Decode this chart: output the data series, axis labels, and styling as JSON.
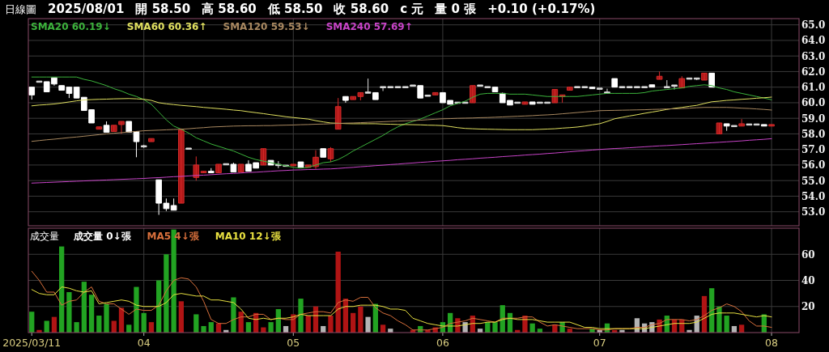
{
  "chart_data": [
    {
      "type": "candlestick",
      "title": "日線圖",
      "annotations": [
        "2025/08/01",
        "開 58.50",
        "高 58.60",
        "低 58.50",
        "收 58.60",
        "c 元",
        "量 0 張",
        "+0.10 (+0.17%)"
      ],
      "categories": [
        "2025/03/11",
        null,
        null,
        null,
        null,
        null,
        null,
        null,
        null,
        null,
        null,
        null,
        null,
        null,
        null,
        "04",
        null,
        null,
        null,
        null,
        null,
        null,
        null,
        null,
        null,
        null,
        null,
        null,
        null,
        null,
        null,
        null,
        null,
        null,
        null,
        "05",
        null,
        null,
        null,
        null,
        null,
        null,
        null,
        null,
        null,
        null,
        null,
        null,
        null,
        null,
        null,
        null,
        null,
        null,
        null,
        "06",
        null,
        null,
        null,
        null,
        null,
        null,
        null,
        null,
        null,
        null,
        null,
        null,
        null,
        null,
        null,
        null,
        null,
        null,
        null,
        null,
        "07",
        null,
        null,
        null,
        null,
        null,
        null,
        null,
        null,
        null,
        null,
        null,
        null,
        null,
        null,
        null,
        null,
        null,
        null,
        null,
        null,
        null,
        null,
        "08"
      ],
      "ohlc": [
        [
          61.0,
          61.0,
          60.2,
          60.5
        ],
        [
          61.35,
          61.35,
          61.35,
          61.35
        ],
        [
          61.35,
          61.35,
          60.7,
          60.7
        ],
        [
          61.6,
          61.6,
          61.1,
          61.2
        ],
        [
          61.1,
          61.1,
          60.8,
          60.8
        ],
        [
          61.0,
          61.0,
          60.3,
          60.6
        ],
        [
          61.0,
          61.0,
          60.3,
          60.3
        ],
        [
          60.35,
          60.35,
          59.5,
          59.5
        ],
        [
          59.55,
          59.55,
          58.7,
          58.7
        ],
        [
          58.3,
          58.45,
          58.3,
          58.45
        ],
        [
          58.55,
          58.8,
          58.1,
          58.1
        ],
        [
          58.15,
          58.55,
          58.15,
          58.55
        ],
        [
          58.6,
          58.8,
          58.0,
          58.8
        ],
        [
          58.8,
          58.8,
          58.1,
          58.1
        ],
        [
          58.15,
          58.15,
          56.5,
          57.5
        ],
        [
          57.2,
          57.3,
          57.1,
          57.2
        ],
        [
          57.5,
          57.7,
          57.5,
          57.7
        ],
        [
          55.05,
          55.05,
          52.8,
          53.55
        ],
        [
          53.55,
          53.85,
          53.05,
          53.2
        ],
        [
          53.4,
          53.85,
          53.1,
          53.1
        ],
        [
          53.55,
          58.35,
          53.55,
          58.25
        ],
        [
          57.05,
          57.05,
          57.05,
          57.05
        ],
        [
          55.2,
          56.55,
          55.0,
          56.0
        ],
        [
          55.5,
          55.6,
          55.5,
          55.6
        ],
        [
          55.6,
          55.8,
          55.5,
          55.5
        ],
        [
          55.5,
          56.05,
          55.5,
          56.05
        ],
        [
          56.05,
          56.05,
          56.05,
          56.05
        ],
        [
          56.05,
          56.15,
          55.55,
          55.55
        ],
        [
          55.55,
          56.05,
          55.55,
          56.05
        ],
        [
          56.05,
          56.3,
          55.6,
          55.6
        ],
        [
          56.15,
          56.15,
          55.8,
          55.8
        ],
        [
          56.0,
          57.05,
          56.0,
          57.05
        ],
        [
          56.3,
          56.3,
          56.0,
          56.0
        ],
        [
          56.0,
          56.25,
          55.8,
          56.0
        ],
        [
          55.95,
          55.95,
          55.95,
          55.95
        ],
        [
          55.95,
          56.05,
          55.95,
          56.05
        ],
        [
          56.2,
          56.2,
          55.85,
          55.85
        ],
        [
          55.85,
          56.0,
          55.85,
          56.0
        ],
        [
          55.9,
          56.95,
          55.75,
          56.5
        ],
        [
          57.05,
          57.05,
          56.5,
          56.5
        ],
        [
          56.4,
          57.15,
          56.2,
          57.05
        ],
        [
          58.3,
          60.3,
          58.3,
          59.75
        ],
        [
          60.4,
          60.4,
          60.0,
          60.15
        ],
        [
          60.2,
          60.4,
          60.2,
          60.4
        ],
        [
          60.4,
          60.65,
          60.15,
          60.65
        ],
        [
          60.65,
          61.55,
          60.65,
          60.65
        ],
        [
          60.65,
          60.65,
          60.2,
          60.2
        ],
        [
          61.0,
          61.0,
          60.75,
          61.0
        ],
        [
          61.0,
          61.0,
          61.0,
          61.0
        ],
        [
          61.0,
          61.0,
          61.0,
          61.0
        ],
        [
          61.0,
          61.0,
          61.0,
          61.0
        ],
        [
          61.1,
          61.1,
          61.1,
          61.1
        ],
        [
          61.1,
          61.1,
          60.3,
          60.3
        ],
        [
          60.45,
          60.45,
          60.45,
          60.45
        ],
        [
          60.5,
          60.65,
          60.5,
          60.65
        ],
        [
          60.65,
          60.65,
          60.0,
          60.0
        ],
        [
          60.15,
          60.15,
          59.9,
          59.9
        ],
        [
          60.0,
          60.0,
          60.0,
          60.0
        ],
        [
          60.0,
          60.0,
          60.0,
          60.0
        ],
        [
          60.0,
          61.1,
          60.0,
          61.1
        ],
        [
          61.1,
          61.1,
          61.1,
          61.1
        ],
        [
          61.0,
          61.0,
          61.0,
          61.0
        ],
        [
          61.0,
          61.0,
          60.7,
          60.7
        ],
        [
          60.6,
          60.65,
          60.0,
          60.0
        ],
        [
          60.15,
          60.15,
          59.85,
          59.85
        ],
        [
          60.0,
          60.0,
          60.0,
          60.0
        ],
        [
          59.9,
          60.05,
          59.9,
          60.05
        ],
        [
          60.05,
          60.05,
          59.9,
          59.9
        ],
        [
          60.0,
          60.0,
          60.0,
          60.0
        ],
        [
          60.0,
          60.0,
          60.0,
          60.0
        ],
        [
          60.0,
          60.85,
          60.0,
          60.85
        ],
        [
          60.4,
          60.5,
          60.0,
          60.5
        ],
        [
          60.8,
          61.0,
          60.8,
          61.0
        ],
        [
          61.0,
          61.0,
          61.0,
          61.0
        ],
        [
          61.0,
          61.0,
          61.0,
          61.0
        ],
        [
          61.0,
          61.0,
          60.9,
          60.9
        ],
        [
          60.9,
          60.9,
          60.9,
          60.9
        ],
        [
          60.65,
          60.9,
          60.6,
          60.65
        ],
        [
          61.55,
          61.55,
          61.0,
          61.0
        ],
        [
          61.0,
          61.0,
          61.0,
          61.0
        ],
        [
          61.0,
          61.0,
          61.0,
          61.0
        ],
        [
          61.0,
          61.0,
          61.0,
          61.0
        ],
        [
          61.0,
          61.0,
          61.0,
          61.0
        ],
        [
          61.15,
          61.15,
          61.0,
          61.0
        ],
        [
          61.5,
          62.0,
          61.5,
          61.7
        ],
        [
          61.0,
          61.45,
          61.0,
          61.0
        ],
        [
          61.1,
          61.1,
          60.85,
          61.1
        ],
        [
          60.95,
          61.7,
          60.95,
          61.55
        ],
        [
          61.55,
          61.55,
          61.55,
          61.55
        ],
        [
          61.55,
          61.55,
          61.45,
          61.55
        ],
        [
          61.45,
          61.9,
          61.45,
          61.9
        ],
        [
          61.9,
          61.9,
          61.0,
          61.0
        ],
        [
          58.0,
          58.7,
          58.0,
          58.7
        ],
        [
          58.65,
          58.65,
          58.2,
          58.5
        ],
        [
          58.5,
          58.5,
          58.5,
          58.5
        ],
        [
          58.5,
          58.95,
          58.5,
          58.65
        ],
        [
          58.6,
          58.6,
          58.6,
          58.6
        ],
        [
          58.6,
          58.6,
          58.6,
          58.6
        ],
        [
          58.6,
          58.6,
          58.5,
          58.5
        ],
        [
          58.5,
          58.6,
          58.5,
          58.6
        ]
      ],
      "series": [
        {
          "type": "line",
          "name": "SMA20 60.19↓",
          "color": "#3cb43c",
          "values": [
            61.65,
            61.65,
            61.65,
            61.65,
            61.65,
            61.65,
            61.65,
            61.5,
            61.4,
            61.25,
            61.1,
            60.9,
            60.75,
            60.55,
            60.4,
            60.2,
            59.9,
            59.4,
            58.9,
            58.5,
            58.3,
            58.05,
            57.75,
            57.55,
            57.35,
            57.2,
            57.05,
            56.9,
            56.7,
            56.5,
            56.35,
            56.25,
            56.15,
            56.05,
            55.95,
            55.85,
            55.8,
            55.85,
            56.0,
            56.15,
            56.2,
            56.35,
            56.6,
            56.9,
            57.15,
            57.4,
            57.65,
            57.9,
            58.2,
            58.45,
            58.65,
            58.8,
            58.95,
            59.15,
            59.35,
            59.55,
            59.8,
            59.95,
            60.1,
            60.35,
            60.55,
            60.6,
            60.6,
            60.6,
            60.55,
            60.55,
            60.55,
            60.5,
            60.45,
            60.4,
            60.4,
            60.4,
            60.4,
            60.4,
            60.45,
            60.5,
            60.55,
            60.6,
            60.6,
            60.6,
            60.6,
            60.6,
            60.65,
            60.75,
            60.8,
            60.85,
            60.9,
            60.95,
            61.05,
            61.1,
            61.15,
            61.1,
            60.95,
            60.85,
            60.7,
            60.6,
            60.5,
            60.4,
            60.3,
            60.19
          ]
        },
        {
          "type": "line",
          "name": "SMA60 60.36↑",
          "color": "#e0e060",
          "values": [
            59.8,
            59.85,
            59.88,
            59.92,
            59.98,
            60.05,
            60.12,
            60.18,
            60.2,
            60.22,
            60.23,
            60.25,
            60.26,
            60.27,
            60.25,
            60.22,
            60.15,
            60.0,
            59.93,
            59.88,
            59.83,
            59.79,
            59.75,
            59.7,
            59.66,
            59.62,
            59.58,
            59.53,
            59.49,
            59.42,
            59.36,
            59.3,
            59.23,
            59.17,
            59.1,
            59.05,
            59.0,
            58.95,
            58.85,
            58.77,
            58.7,
            58.68,
            58.66,
            58.65,
            58.65,
            58.65,
            58.65,
            58.63,
            58.62,
            58.6,
            58.6,
            58.59,
            58.58,
            58.56,
            58.55,
            58.53,
            58.47,
            58.4,
            58.35,
            58.33,
            58.31,
            58.3,
            58.29,
            58.28,
            58.27,
            58.27,
            58.27,
            58.27,
            58.29,
            58.31,
            58.33,
            58.37,
            58.4,
            58.44,
            58.5,
            58.58,
            58.65,
            58.8,
            58.97,
            59.06,
            59.15,
            59.23,
            59.32,
            59.4,
            59.48,
            59.57,
            59.64,
            59.7,
            59.77,
            59.83,
            59.95,
            60.06,
            60.1,
            60.15,
            60.18,
            60.22,
            60.25,
            60.29,
            60.32,
            60.36
          ]
        },
        {
          "type": "line",
          "name": "SMA120 59.53↓",
          "color": "#a88860",
          "values": [
            57.52,
            57.57,
            57.62,
            57.66,
            57.71,
            57.76,
            57.8,
            57.85,
            57.9,
            57.95,
            58.0,
            58.04,
            58.08,
            58.12,
            58.16,
            58.2,
            58.22,
            58.24,
            58.26,
            58.28,
            58.3,
            58.33,
            58.37,
            58.4,
            58.44,
            58.46,
            58.48,
            58.5,
            58.51,
            58.52,
            58.52,
            58.53,
            58.53,
            58.55,
            58.56,
            58.57,
            58.59,
            58.6,
            58.62,
            58.63,
            58.65,
            58.67,
            58.69,
            58.7,
            58.72,
            58.74,
            58.76,
            58.78,
            58.8,
            58.82,
            58.84,
            58.86,
            58.88,
            58.91,
            58.94,
            58.97,
            58.98,
            59.0,
            59.01,
            59.02,
            59.04,
            59.05,
            59.07,
            59.09,
            59.11,
            59.13,
            59.15,
            59.17,
            59.2,
            59.22,
            59.25,
            59.29,
            59.33,
            59.37,
            59.41,
            59.45,
            59.49,
            59.5,
            59.51,
            59.52,
            59.53,
            59.54,
            59.55,
            59.57,
            59.58,
            59.6,
            59.61,
            59.63,
            59.65,
            59.68,
            59.7,
            59.7,
            59.7,
            59.7,
            59.68,
            59.65,
            59.63,
            59.6,
            59.57,
            59.53
          ]
        },
        {
          "type": "line",
          "name": "SMA240 57.69↑",
          "color": "#c844c8",
          "values": [
            54.84,
            54.86,
            54.88,
            54.9,
            54.92,
            54.94,
            54.96,
            54.98,
            55.0,
            55.02,
            55.04,
            55.06,
            55.08,
            55.1,
            55.12,
            55.14,
            55.17,
            55.19,
            55.22,
            55.25,
            55.27,
            55.3,
            55.33,
            55.35,
            55.38,
            55.41,
            55.44,
            55.46,
            55.49,
            55.52,
            55.54,
            55.57,
            55.6,
            55.63,
            55.65,
            55.68,
            55.69,
            55.71,
            55.72,
            55.74,
            55.75,
            55.78,
            55.82,
            55.85,
            55.89,
            55.92,
            55.96,
            55.99,
            56.03,
            56.06,
            56.1,
            56.13,
            56.17,
            56.2,
            56.24,
            56.27,
            56.3,
            56.34,
            56.37,
            56.4,
            56.44,
            56.47,
            56.5,
            56.54,
            56.57,
            56.6,
            56.64,
            56.67,
            56.7,
            56.74,
            56.77,
            56.81,
            56.85,
            56.89,
            56.92,
            56.96,
            57.0,
            57.03,
            57.06,
            57.08,
            57.11,
            57.14,
            57.17,
            57.2,
            57.23,
            57.25,
            57.28,
            57.31,
            57.34,
            57.37,
            57.4,
            57.43,
            57.46,
            57.49,
            57.52,
            57.55,
            57.59,
            57.62,
            57.65,
            57.69
          ]
        }
      ],
      "ylim": [
        52.1,
        65.4
      ],
      "yticks": [
        {
          "value": 53,
          "label": "53.0"
        },
        {
          "value": 54,
          "label": "54.0"
        },
        {
          "value": 55,
          "label": "55.0"
        },
        {
          "value": 56,
          "label": "56.0"
        },
        {
          "value": 57,
          "label": "57.0"
        },
        {
          "value": 58,
          "label": "58.0"
        },
        {
          "value": 59,
          "label": "59.0"
        },
        {
          "value": 60,
          "label": "60.0"
        },
        {
          "value": 61,
          "label": "61.0"
        },
        {
          "value": 62,
          "label": "62.0"
        },
        {
          "value": 63,
          "label": "63.0"
        },
        {
          "value": 64,
          "label": "64.0"
        },
        {
          "value": 65,
          "label": "65.0"
        }
      ],
      "grid": true,
      "legend": "top left",
      "tick_labels": "y"
    },
    {
      "type": "bar",
      "title": "成交量",
      "categories": [
        "2025/03/11",
        null,
        null,
        null,
        null,
        null,
        null,
        null,
        null,
        null,
        null,
        null,
        null,
        null,
        null,
        "04",
        null,
        null,
        null,
        null,
        null,
        null,
        null,
        null,
        null,
        null,
        null,
        null,
        null,
        null,
        null,
        null,
        null,
        null,
        null,
        "05",
        null,
        null,
        null,
        null,
        null,
        null,
        null,
        null,
        null,
        null,
        null,
        null,
        null,
        null,
        null,
        null,
        null,
        null,
        null,
        "06",
        null,
        null,
        null,
        null,
        null,
        null,
        null,
        null,
        null,
        null,
        null,
        null,
        null,
        null,
        null,
        null,
        null,
        null,
        null,
        null,
        "07",
        null,
        null,
        null,
        null,
        null,
        null,
        null,
        null,
        null,
        null,
        null,
        null,
        null,
        null,
        null,
        null,
        null,
        null,
        null,
        null,
        null,
        null,
        "08"
      ],
      "series": [
        {
          "name": "成交量 0↓張",
          "values": [
            16,
            2,
            9,
            12,
            66,
            31,
            8,
            39,
            29,
            13,
            22,
            9,
            19,
            6,
            35,
            15,
            8,
            40,
            60,
            79,
            24,
            0,
            14,
            5,
            8,
            7,
            2,
            27,
            16,
            8,
            15,
            4,
            8,
            18,
            5,
            14,
            26,
            13,
            20,
            5,
            13,
            62,
            26,
            15,
            20,
            12,
            22,
            6,
            3,
            0,
            0,
            2,
            5,
            2,
            4,
            8,
            15,
            11,
            8,
            13,
            3,
            8,
            8,
            21,
            15,
            2,
            13,
            7,
            3,
            0,
            6,
            8,
            3,
            0,
            0,
            3,
            2,
            7,
            2,
            2,
            0,
            11,
            7,
            8,
            10,
            13,
            10,
            10,
            2,
            13,
            28,
            34,
            20,
            13,
            5,
            6,
            0,
            0,
            14,
            0
          ],
          "colors": [
            "#22a322",
            "#b01414",
            "#22a322",
            "#b01414",
            "#22a322",
            "#22a322",
            "#22a322",
            "#22a322",
            "#22a322",
            "#22a322",
            "#22a322",
            "#b01414",
            "#b01414",
            "#22a322",
            "#22a322",
            "#22a322",
            "#b01414",
            "#22a322",
            "#22a322",
            "#22a322",
            "#b01414",
            null,
            "#22a322",
            "#22a322",
            "#22a322",
            "#b01414",
            "#b4b4b4",
            "#22a322",
            "#b01414",
            "#22a322",
            "#b01414",
            "#b01414",
            "#22a322",
            "#22a322",
            "#b4b4b4",
            "#b01414",
            "#22a322",
            "#b01414",
            "#b01414",
            "#b4b4b4",
            "#b01414",
            "#b01414",
            "#b01414",
            "#b01414",
            "#b01414",
            "#b4b4b4",
            "#22a322",
            "#b01414",
            "#b4b4b4",
            null,
            null,
            "#b01414",
            "#22a322",
            "#b01414",
            "#b01414",
            "#22a322",
            "#22a322",
            "#b01414",
            "#b4b4b4",
            "#b01414",
            "#b4b4b4",
            "#22a322",
            "#22a322",
            "#22a322",
            "#22a322",
            "#b01414",
            "#b01414",
            "#22a322",
            "#22a322",
            null,
            "#b01414",
            "#22a322",
            "#b01414",
            null,
            null,
            "#22a322",
            "#b4b4b4",
            "#22a322",
            "#b01414",
            "#b4b4b4",
            null,
            "#b4b4b4",
            "#b4b4b4",
            "#b4b4b4",
            "#b01414",
            "#22a322",
            "#b01414",
            "#b01414",
            "#b4b4b4",
            "#b4b4b4",
            "#b01414",
            "#22a322",
            "#22a322",
            "#22a322",
            "#b4b4b4",
            "#b01414",
            null,
            null,
            "#22a322",
            null
          ]
        },
        {
          "type": "line",
          "name": "MA5 4↓張",
          "color": "#d8703c",
          "values": [
            47,
            40,
            31,
            31,
            21,
            24,
            25,
            31,
            35,
            24,
            22,
            22,
            18,
            14,
            18,
            17,
            17,
            21,
            32,
            40,
            42,
            41,
            35,
            24,
            10,
            7,
            7,
            10,
            12,
            12,
            14,
            14,
            10,
            11,
            10,
            10,
            14,
            15,
            16,
            16,
            15,
            23,
            25,
            24,
            27,
            27,
            19,
            15,
            13,
            9,
            6,
            2,
            2,
            2,
            3,
            4,
            7,
            8,
            9,
            11,
            10,
            9,
            8,
            11,
            11,
            11,
            12,
            12,
            8,
            5,
            6,
            5,
            4,
            3,
            3,
            3,
            2,
            2,
            3,
            3,
            3,
            4,
            4,
            6,
            7,
            10,
            10,
            10,
            9,
            10,
            13,
            17,
            19,
            22,
            20,
            16,
            9,
            5,
            5,
            4
          ]
        },
        {
          "type": "line",
          "name": "MA10 12↓張",
          "color": "#e8e040",
          "values": [
            33,
            30,
            29,
            29,
            35,
            34,
            32,
            31,
            32,
            22,
            23,
            24,
            25,
            24,
            21,
            20,
            20,
            20,
            23,
            29,
            30,
            29,
            28,
            28,
            25,
            25,
            24,
            23,
            18,
            11,
            10,
            11,
            10,
            11,
            11,
            12,
            14,
            13,
            13,
            13,
            13,
            18,
            20,
            20,
            21,
            21,
            21,
            20,
            18,
            18,
            17,
            11,
            9,
            7,
            6,
            5,
            5,
            5,
            6,
            7,
            7,
            8,
            8,
            10,
            11,
            10,
            10,
            10,
            9,
            8,
            8,
            8,
            8,
            6,
            4,
            4,
            3,
            3,
            3,
            3,
            3,
            3,
            3,
            4,
            5,
            6,
            7,
            7,
            7,
            8,
            11,
            14,
            15,
            15,
            15,
            14,
            13,
            12,
            13,
            12
          ]
        }
      ],
      "ylim": [
        0,
        80
      ],
      "yticks": [
        20,
        40,
        60
      ],
      "grid": true,
      "legend": "top left"
    }
  ]
}
